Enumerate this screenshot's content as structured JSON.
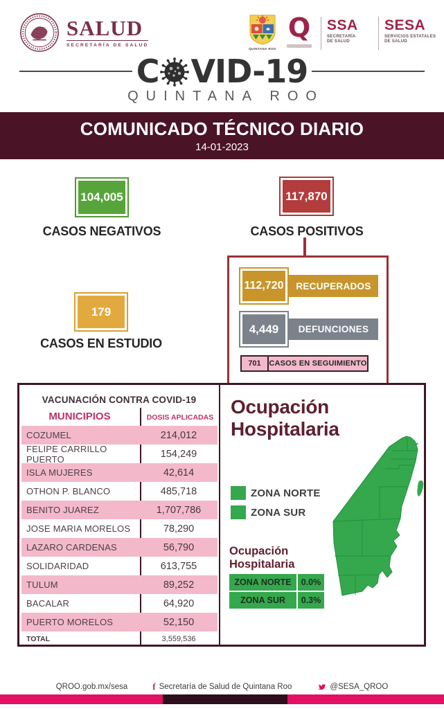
{
  "colors": {
    "guinda": "#4a1426",
    "panel_red": "#9e3138",
    "green": "#57a53a",
    "map_green": "#35a84d",
    "red": "#b23d3c",
    "gold": "#c8952c",
    "amber": "#e2aa3e",
    "gray": "#7b828b",
    "pink": "#f3b9ca",
    "magenta": "#c12f6b",
    "maroon_title": "#5e1f30",
    "footer_pink": "#e30f63",
    "footer_dark": "#2c0e1c"
  },
  "header": {
    "salud": {
      "title": "SALUD",
      "subtitle": "SECRETARÍA DE SALUD"
    },
    "qroo_caption": "QUINTANA ROO",
    "q_glyph": "Q",
    "ssa": {
      "abbr": "SSA",
      "sub1": "SECRETARÍA",
      "sub2": "DE SALUD"
    },
    "sesa": {
      "abbr": "SESA",
      "sub1": "SERVICIOS ESTATALES",
      "sub2": "DE SALUD"
    }
  },
  "covid": {
    "part1": "C",
    "part2": "VID-19",
    "subtitle": "QUINTANA ROO"
  },
  "banner": {
    "title": "COMUNICADO TÉCNICO DIARIO",
    "date": "14-01-2023"
  },
  "stats": {
    "negativos": {
      "value": "104,005",
      "label": "CASOS NEGATIVOS"
    },
    "positivos": {
      "value": "117,870",
      "label": "CASOS POSITIVOS"
    },
    "estudio": {
      "value": "179",
      "label": "CASOS EN ESTUDIO"
    }
  },
  "panel": {
    "recuperados": {
      "value": "112,720",
      "label": "RECUPERADOS"
    },
    "defunciones": {
      "value": "4,449",
      "label": "DEFUNCIONES"
    },
    "seguimiento": {
      "value": "701",
      "label": "CASOS EN SEGUIMIENTO"
    }
  },
  "vaccination_table": {
    "title": "VACUNACIÓN CONTRA COVID-19",
    "columns": {
      "municipios": "MUNICIPIOS",
      "dosis": "DOSIS APLICADAS"
    },
    "rows": [
      {
        "municipio": "COZUMEL",
        "dosis": "214,012"
      },
      {
        "municipio": "FELIPE CARRILLO PUERTO",
        "dosis": "154,249"
      },
      {
        "municipio": "ISLA MUJERES",
        "dosis": "42,614"
      },
      {
        "municipio": "OTHON P. BLANCO",
        "dosis": "485,718"
      },
      {
        "municipio": "BENITO JUAREZ",
        "dosis": "1,707,786"
      },
      {
        "municipio": "JOSE MARIA MORELOS",
        "dosis": "78,290"
      },
      {
        "municipio": "LAZARO CARDENAS",
        "dosis": "56,790"
      },
      {
        "municipio": "SOLIDARIDAD",
        "dosis": "613,755"
      },
      {
        "municipio": "TULUM",
        "dosis": "89,252"
      },
      {
        "municipio": "BACALAR",
        "dosis": "64,920"
      },
      {
        "municipio": "PUERTO MORELOS",
        "dosis": "52,150"
      }
    ],
    "total": {
      "label": "TOTAL",
      "value": "3,559,536"
    }
  },
  "hospital": {
    "title_line1": "Ocupación",
    "title_line2": "Hospitalaria",
    "legend": [
      {
        "label": "ZONA NORTE"
      },
      {
        "label": "ZONA SUR"
      }
    ],
    "subtitle_line1": "Ocupación",
    "subtitle_line2": "Hospitalaria",
    "zones": [
      {
        "name": "ZONA NORTE",
        "value": "0.0%"
      },
      {
        "name": "ZONA SUR",
        "value": "0.3%"
      }
    ]
  },
  "footer": {
    "website": "QROO.gob.mx/sesa",
    "facebook": "Secretaría de Salud de Quintana Roo",
    "twitter": "@SESA_QROO"
  }
}
